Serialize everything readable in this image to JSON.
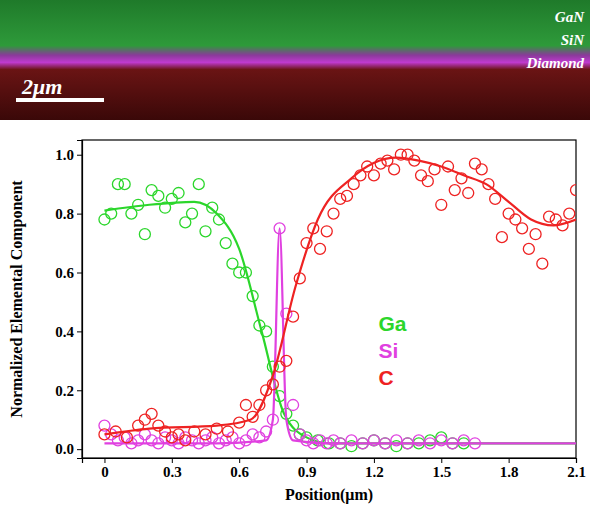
{
  "chart_data": {
    "type": "scatter",
    "image_labels": [
      "GaN",
      "SiN",
      "Diamond"
    ],
    "scale_bar": "2μm",
    "x_label": "Position(μm)",
    "y_label": "Normalized Elemental Component",
    "xlim": [
      -0.1,
      2.1
    ],
    "ylim": [
      -0.03,
      1.05
    ],
    "xticks": [
      0,
      0.3,
      0.6,
      0.9,
      1.2,
      1.5,
      1.8,
      2.1
    ],
    "yticks": [
      {
        "value": 0,
        "label": "0.0"
      },
      0.2,
      0.4,
      0.6,
      0.8,
      {
        "value": 1,
        "label": "1.0"
      }
    ],
    "legend": "center",
    "series": [
      {
        "name": "Ga",
        "color": "#2bd62b",
        "marker": "circle",
        "x": [
          0,
          0.03,
          0.06,
          0.09,
          0.12,
          0.15,
          0.18,
          0.21,
          0.24,
          0.27,
          0.3,
          0.33,
          0.36,
          0.39,
          0.42,
          0.45,
          0.48,
          0.51,
          0.54,
          0.57,
          0.6,
          0.63,
          0.66,
          0.69,
          0.72,
          0.75,
          0.78,
          0.81,
          0.84,
          0.87,
          0.9,
          0.95,
          1.0,
          1.05,
          1.1,
          1.15,
          1.2,
          1.25,
          1.3,
          1.35,
          1.4,
          1.45,
          1.5,
          1.55,
          1.6
        ],
        "values": [
          0.78,
          0.8,
          0.9,
          0.9,
          0.8,
          0.83,
          0.73,
          0.88,
          0.86,
          0.82,
          0.85,
          0.87,
          0.77,
          0.8,
          0.9,
          0.74,
          0.82,
          0.78,
          0.7,
          0.63,
          0.6,
          0.6,
          0.52,
          0.42,
          0.4,
          0.28,
          0.18,
          0.12,
          0.08,
          0.05,
          0.04,
          0.03,
          0.02,
          0.02,
          0.01,
          0.02,
          0.03,
          0.02,
          0.01,
          0.02,
          0.02,
          0.03,
          0.04,
          0.02,
          0.02
        ],
        "fit": {
          "x": [
            0,
            0.2,
            0.4,
            0.5,
            0.6,
            0.7,
            0.8,
            0.9,
            1.0,
            1.5,
            2.1
          ],
          "values": [
            0.81,
            0.83,
            0.84,
            0.8,
            0.68,
            0.4,
            0.12,
            0.04,
            0.02,
            0.02,
            0.02
          ]
        }
      },
      {
        "name": "Si",
        "color": "#e040e0",
        "marker": "circle",
        "x": [
          0,
          0.03,
          0.06,
          0.09,
          0.12,
          0.15,
          0.18,
          0.21,
          0.24,
          0.27,
          0.3,
          0.33,
          0.36,
          0.39,
          0.42,
          0.45,
          0.48,
          0.51,
          0.54,
          0.57,
          0.6,
          0.63,
          0.66,
          0.69,
          0.72,
          0.75,
          0.78,
          0.81,
          0.84,
          0.87,
          0.9,
          0.93,
          0.96,
          0.99,
          1.02,
          1.05,
          1.1,
          1.15,
          1.2,
          1.25,
          1.3,
          1.35,
          1.4,
          1.45,
          1.5,
          1.55,
          1.6,
          1.65
        ],
        "values": [
          0.08,
          0.05,
          0.03,
          0.04,
          0.02,
          0.03,
          0.05,
          0.03,
          0.02,
          0.04,
          0.03,
          0.02,
          0.04,
          0.03,
          0.02,
          0.03,
          0.04,
          0.02,
          0.03,
          0.04,
          0.02,
          0.03,
          0.05,
          0.04,
          0.06,
          0.1,
          0.75,
          0.46,
          0.15,
          0.05,
          0.03,
          0.02,
          0.03,
          0.02,
          0.03,
          0.02,
          0.03,
          0.02,
          0.03,
          0.02,
          0.03,
          0.02,
          0.03,
          0.02,
          0.03,
          0.02,
          0.03,
          0.02
        ],
        "fit": {
          "x": [
            0,
            0.5,
            0.72,
            0.75,
            0.78,
            0.81,
            0.84,
            1.0,
            2.1
          ],
          "values": [
            0.02,
            0.02,
            0.03,
            0.1,
            0.75,
            0.1,
            0.03,
            0.02,
            0.02
          ]
        }
      },
      {
        "name": "C",
        "color": "#ee2222",
        "marker": "circle",
        "x": [
          0,
          0.05,
          0.1,
          0.15,
          0.18,
          0.21,
          0.24,
          0.27,
          0.3,
          0.33,
          0.36,
          0.4,
          0.45,
          0.5,
          0.55,
          0.6,
          0.63,
          0.66,
          0.69,
          0.72,
          0.75,
          0.78,
          0.81,
          0.84,
          0.87,
          0.9,
          0.93,
          0.96,
          0.99,
          1.02,
          1.05,
          1.08,
          1.11,
          1.14,
          1.17,
          1.2,
          1.23,
          1.26,
          1.29,
          1.32,
          1.35,
          1.38,
          1.41,
          1.44,
          1.47,
          1.5,
          1.53,
          1.56,
          1.59,
          1.62,
          1.65,
          1.68,
          1.71,
          1.74,
          1.77,
          1.8,
          1.83,
          1.86,
          1.89,
          1.92,
          1.95,
          1.98,
          2.01,
          2.04,
          2.07,
          2.1
        ],
        "values": [
          0.05,
          0.06,
          0.04,
          0.08,
          0.1,
          0.12,
          0.08,
          0.06,
          0.04,
          0.05,
          0.03,
          0.06,
          0.05,
          0.07,
          0.06,
          0.09,
          0.15,
          0.11,
          0.15,
          0.2,
          0.22,
          0.28,
          0.3,
          0.45,
          0.58,
          0.7,
          0.75,
          0.68,
          0.74,
          0.8,
          0.85,
          0.86,
          0.9,
          0.93,
          0.96,
          0.93,
          0.97,
          0.98,
          0.95,
          1.0,
          1.0,
          0.98,
          0.93,
          0.91,
          0.95,
          0.83,
          0.96,
          0.88,
          0.92,
          0.87,
          0.97,
          0.95,
          0.9,
          0.85,
          0.72,
          0.8,
          0.78,
          0.75,
          0.68,
          0.73,
          0.63,
          0.79,
          0.78,
          0.76,
          0.8,
          0.88
        ],
        "fit": {
          "x": [
            0,
            0.2,
            0.5,
            0.65,
            0.75,
            0.85,
            0.95,
            1.1,
            1.3,
            1.4,
            1.5,
            1.6,
            1.7,
            1.8,
            1.9,
            2.0,
            2.1
          ],
          "values": [
            0.05,
            0.07,
            0.08,
            0.1,
            0.25,
            0.55,
            0.78,
            0.92,
            0.99,
            0.98,
            0.96,
            0.93,
            0.9,
            0.84,
            0.78,
            0.76,
            0.78
          ]
        }
      }
    ]
  }
}
